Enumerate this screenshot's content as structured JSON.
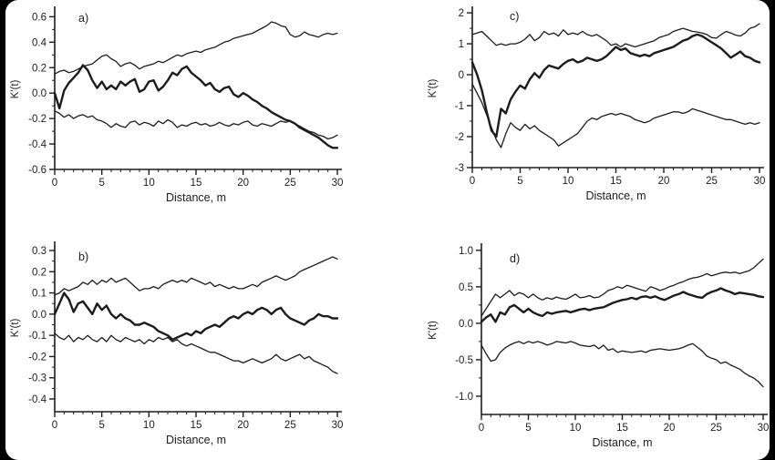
{
  "figure": {
    "background": "#ffffff",
    "page_background": "#000000",
    "line_color": "#1c1c1c",
    "text_color": "#1c1c1c"
  },
  "chart_data": [
    {
      "id": "a",
      "type": "line",
      "panel_label": "a)",
      "xlabel": "Distance, m",
      "ylabel": "K'(t)",
      "xlim": [
        0,
        30
      ],
      "ylim": [
        -0.6,
        0.66
      ],
      "xticks": [
        0,
        5,
        10,
        15,
        20,
        25,
        30
      ],
      "xtick_labels": [
        "0",
        "5",
        "10",
        "15",
        "20",
        "25",
        "30"
      ],
      "x_minor_step": 1,
      "yticks": [
        0.6,
        0.4,
        0.2,
        0,
        -0.2,
        -0.4,
        -0.6
      ],
      "ytick_labels": [
        "0.6",
        "0.4",
        "0.2",
        "0.0",
        "-0.2",
        "-0.4",
        "-0.6"
      ],
      "y_minor_step": 0.1,
      "grid": false,
      "legend": "none",
      "x_start": 0,
      "x_step": 0.5,
      "series": [
        {
          "name": "upper-envelope",
          "width": 1.3,
          "y": [
            0.15,
            0.17,
            0.18,
            0.16,
            0.17,
            0.19,
            0.21,
            0.22,
            0.23,
            0.26,
            0.29,
            0.3,
            0.27,
            0.25,
            0.21,
            0.23,
            0.24,
            0.22,
            0.19,
            0.21,
            0.22,
            0.23,
            0.25,
            0.24,
            0.26,
            0.28,
            0.3,
            0.29,
            0.31,
            0.32,
            0.33,
            0.32,
            0.34,
            0.35,
            0.36,
            0.38,
            0.4,
            0.41,
            0.43,
            0.44,
            0.45,
            0.46,
            0.47,
            0.49,
            0.51,
            0.53,
            0.56,
            0.55,
            0.53,
            0.52,
            0.46,
            0.44,
            0.45,
            0.48,
            0.46,
            0.45,
            0.44,
            0.46,
            0.47,
            0.46,
            0.47
          ]
        },
        {
          "name": "observed",
          "width": 2.4,
          "y": [
            0.0,
            -0.12,
            0.02,
            0.08,
            0.12,
            0.16,
            0.22,
            0.18,
            0.1,
            0.04,
            0.09,
            0.03,
            0.06,
            0.03,
            0.09,
            0.06,
            0.09,
            0.11,
            0.01,
            0.03,
            0.09,
            0.1,
            0.02,
            0.05,
            0.1,
            0.16,
            0.14,
            0.19,
            0.21,
            0.16,
            0.13,
            0.1,
            0.06,
            0.08,
            0.03,
            0.01,
            0.04,
            0.05,
            -0.01,
            -0.03,
            0.0,
            -0.02,
            -0.05,
            -0.07,
            -0.1,
            -0.12,
            -0.15,
            -0.17,
            -0.19,
            -0.21,
            -0.22,
            -0.24,
            -0.27,
            -0.29,
            -0.31,
            -0.33,
            -0.35,
            -0.38,
            -0.41,
            -0.43,
            -0.43
          ]
        },
        {
          "name": "lower-envelope",
          "width": 1.3,
          "y": [
            -0.14,
            -0.16,
            -0.19,
            -0.17,
            -0.2,
            -0.18,
            -0.17,
            -0.19,
            -0.18,
            -0.21,
            -0.22,
            -0.24,
            -0.27,
            -0.24,
            -0.26,
            -0.27,
            -0.23,
            -0.22,
            -0.25,
            -0.23,
            -0.24,
            -0.26,
            -0.22,
            -0.24,
            -0.21,
            -0.23,
            -0.27,
            -0.25,
            -0.26,
            -0.24,
            -0.23,
            -0.25,
            -0.24,
            -0.26,
            -0.25,
            -0.23,
            -0.25,
            -0.26,
            -0.24,
            -0.25,
            -0.23,
            -0.22,
            -0.25,
            -0.26,
            -0.24,
            -0.25,
            -0.26,
            -0.24,
            -0.22,
            -0.23,
            -0.22,
            -0.24,
            -0.26,
            -0.28,
            -0.3,
            -0.31,
            -0.33,
            -0.34,
            -0.36,
            -0.35,
            -0.33
          ]
        }
      ]
    },
    {
      "id": "c",
      "type": "line",
      "panel_label": "c)",
      "xlabel": "Distance, m",
      "ylabel": "K'(t)",
      "xlim": [
        0,
        30
      ],
      "ylim": [
        -3.0,
        2.12
      ],
      "xticks": [
        0,
        5,
        10,
        15,
        20,
        25,
        30
      ],
      "xtick_labels": [
        "0",
        "5",
        "10",
        "15",
        "20",
        "25",
        "30"
      ],
      "x_minor_step": 1,
      "yticks": [
        2,
        1,
        0,
        -1,
        -2,
        -3
      ],
      "ytick_labels": [
        "2",
        "1",
        "0",
        "-1",
        "-2",
        "-3"
      ],
      "y_minor_step": 0.5,
      "grid": false,
      "legend": "none",
      "x_start": 0,
      "x_step": 0.5,
      "series": [
        {
          "name": "upper-envelope",
          "width": 1.3,
          "y": [
            1.3,
            1.35,
            1.4,
            1.25,
            1.1,
            0.95,
            1.0,
            0.95,
            1.0,
            1.0,
            1.05,
            1.15,
            1.3,
            1.1,
            1.2,
            1.4,
            1.3,
            1.35,
            1.25,
            1.45,
            1.3,
            1.35,
            1.3,
            1.4,
            1.3,
            1.25,
            1.3,
            1.2,
            1.1,
            0.95,
            1.0,
            0.9,
            1.0,
            0.95,
            0.9,
            0.95,
            1.0,
            1.05,
            1.1,
            1.2,
            1.25,
            1.3,
            1.4,
            1.45,
            1.5,
            1.45,
            1.4,
            1.38,
            1.35,
            1.3,
            1.2,
            1.18,
            1.3,
            1.4,
            1.35,
            1.28,
            1.25,
            1.35,
            1.5,
            1.55,
            1.65
          ]
        },
        {
          "name": "observed",
          "width": 2.4,
          "y": [
            0.4,
            0.0,
            -0.5,
            -1.2,
            -1.8,
            -2.0,
            -1.1,
            -1.25,
            -0.8,
            -0.55,
            -0.35,
            -0.45,
            -0.15,
            0.05,
            -0.1,
            0.15,
            0.3,
            0.25,
            0.2,
            0.35,
            0.45,
            0.5,
            0.4,
            0.45,
            0.55,
            0.5,
            0.45,
            0.5,
            0.6,
            0.75,
            0.9,
            0.8,
            0.85,
            0.7,
            0.65,
            0.6,
            0.65,
            0.6,
            0.7,
            0.75,
            0.8,
            0.85,
            0.9,
            1.0,
            1.1,
            1.15,
            1.25,
            1.3,
            1.25,
            1.15,
            1.05,
            0.95,
            0.85,
            0.7,
            0.55,
            0.65,
            0.75,
            0.6,
            0.55,
            0.45,
            0.4
          ]
        },
        {
          "name": "lower-envelope",
          "width": 1.3,
          "y": [
            -0.3,
            -0.6,
            -0.9,
            -1.3,
            -1.7,
            -2.1,
            -2.35,
            -1.9,
            -1.55,
            -1.7,
            -1.8,
            -1.6,
            -1.75,
            -1.65,
            -1.8,
            -1.9,
            -2.0,
            -2.1,
            -2.3,
            -2.2,
            -2.1,
            -2.0,
            -1.9,
            -1.7,
            -1.5,
            -1.4,
            -1.45,
            -1.35,
            -1.3,
            -1.25,
            -1.3,
            -1.25,
            -1.3,
            -1.35,
            -1.45,
            -1.5,
            -1.55,
            -1.5,
            -1.4,
            -1.35,
            -1.3,
            -1.25,
            -1.2,
            -1.2,
            -1.25,
            -1.2,
            -1.1,
            -1.15,
            -1.2,
            -1.25,
            -1.3,
            -1.35,
            -1.4,
            -1.45,
            -1.45,
            -1.5,
            -1.55,
            -1.6,
            -1.55,
            -1.6,
            -1.55
          ]
        }
      ]
    },
    {
      "id": "b",
      "type": "line",
      "panel_label": "b)",
      "xlabel": "Distance, m",
      "ylabel": "K'(t)",
      "xlim": [
        0,
        30
      ],
      "ylim": [
        -0.46,
        0.33
      ],
      "xticks": [
        0,
        5,
        10,
        15,
        20,
        25,
        30
      ],
      "xtick_labels": [
        "0",
        "5",
        "10",
        "15",
        "20",
        "25",
        "30"
      ],
      "x_minor_step": 1,
      "yticks": [
        0.3,
        0.2,
        0.1,
        0,
        -0.1,
        -0.2,
        -0.3,
        -0.4
      ],
      "ytick_labels": [
        "0.3",
        "0.2",
        "0.1",
        "0.0",
        "-0.1",
        "-0.2",
        "-0.3",
        "-0.4"
      ],
      "y_minor_step": 0.05,
      "grid": false,
      "legend": "none",
      "x_start": 0,
      "x_step": 0.5,
      "series": [
        {
          "name": "upper-envelope",
          "width": 1.3,
          "y": [
            0.09,
            0.1,
            0.12,
            0.11,
            0.12,
            0.13,
            0.15,
            0.14,
            0.16,
            0.14,
            0.16,
            0.15,
            0.17,
            0.15,
            0.16,
            0.17,
            0.15,
            0.13,
            0.11,
            0.12,
            0.12,
            0.13,
            0.12,
            0.14,
            0.15,
            0.16,
            0.15,
            0.16,
            0.15,
            0.17,
            0.16,
            0.15,
            0.14,
            0.15,
            0.13,
            0.14,
            0.13,
            0.12,
            0.13,
            0.12,
            0.12,
            0.13,
            0.14,
            0.13,
            0.15,
            0.16,
            0.17,
            0.18,
            0.17,
            0.16,
            0.17,
            0.18,
            0.2,
            0.21,
            0.22,
            0.23,
            0.24,
            0.25,
            0.26,
            0.27,
            0.26
          ]
        },
        {
          "name": "observed",
          "width": 2.4,
          "y": [
            0.0,
            0.05,
            0.1,
            0.07,
            0.01,
            0.05,
            0.06,
            0.03,
            0.0,
            0.05,
            0.02,
            0.04,
            0.0,
            -0.02,
            0.0,
            -0.02,
            -0.03,
            -0.05,
            -0.05,
            -0.04,
            -0.05,
            -0.06,
            -0.08,
            -0.09,
            -0.1,
            -0.12,
            -0.11,
            -0.1,
            -0.09,
            -0.1,
            -0.08,
            -0.09,
            -0.07,
            -0.06,
            -0.05,
            -0.06,
            -0.04,
            -0.02,
            -0.01,
            -0.02,
            0.0,
            0.01,
            0.0,
            0.02,
            0.03,
            0.02,
            0.0,
            0.02,
            0.03,
            0.0,
            -0.02,
            -0.03,
            -0.04,
            -0.05,
            -0.03,
            -0.02,
            0.0,
            -0.01,
            -0.01,
            -0.02,
            -0.02
          ]
        },
        {
          "name": "lower-envelope",
          "width": 1.3,
          "y": [
            -0.09,
            -0.11,
            -0.12,
            -0.1,
            -0.13,
            -0.11,
            -0.12,
            -0.1,
            -0.12,
            -0.13,
            -0.11,
            -0.13,
            -0.1,
            -0.12,
            -0.13,
            -0.11,
            -0.12,
            -0.13,
            -0.12,
            -0.14,
            -0.12,
            -0.13,
            -0.11,
            -0.12,
            -0.11,
            -0.13,
            -0.12,
            -0.14,
            -0.15,
            -0.14,
            -0.15,
            -0.16,
            -0.17,
            -0.18,
            -0.18,
            -0.19,
            -0.2,
            -0.21,
            -0.22,
            -0.22,
            -0.23,
            -0.22,
            -0.21,
            -0.22,
            -0.23,
            -0.22,
            -0.21,
            -0.19,
            -0.21,
            -0.22,
            -0.21,
            -0.2,
            -0.19,
            -0.21,
            -0.2,
            -0.22,
            -0.23,
            -0.24,
            -0.25,
            -0.27,
            -0.28
          ]
        }
      ]
    },
    {
      "id": "d",
      "type": "line",
      "panel_label": "d)",
      "xlabel": "Distance, m",
      "ylabel": "K'(t)",
      "xlim": [
        0,
        30
      ],
      "ylim": [
        -1.25,
        1.06
      ],
      "xticks": [
        0,
        5,
        10,
        15,
        20,
        25,
        30
      ],
      "xtick_labels": [
        "0",
        "5",
        "10",
        "15",
        "20",
        "25",
        "30"
      ],
      "x_minor_step": 1,
      "yticks": [
        1.0,
        0.5,
        0.0,
        -0.5,
        -1.0
      ],
      "ytick_labels": [
        "1.0",
        "0.5",
        "0.0",
        "-0.5",
        "-1.0"
      ],
      "y_minor_step": 0.25,
      "grid": false,
      "legend": "none",
      "x_start": 0,
      "x_step": 0.5,
      "series": [
        {
          "name": "upper-envelope",
          "width": 1.3,
          "y": [
            0.1,
            0.2,
            0.3,
            0.4,
            0.35,
            0.4,
            0.45,
            0.38,
            0.42,
            0.4,
            0.35,
            0.4,
            0.35,
            0.32,
            0.35,
            0.33,
            0.36,
            0.34,
            0.33,
            0.36,
            0.4,
            0.35,
            0.36,
            0.38,
            0.35,
            0.36,
            0.4,
            0.45,
            0.47,
            0.5,
            0.48,
            0.52,
            0.5,
            0.48,
            0.46,
            0.44,
            0.5,
            0.48,
            0.45,
            0.47,
            0.5,
            0.52,
            0.55,
            0.57,
            0.6,
            0.62,
            0.63,
            0.65,
            0.68,
            0.65,
            0.67,
            0.69,
            0.7,
            0.69,
            0.7,
            0.68,
            0.7,
            0.72,
            0.76,
            0.82,
            0.88
          ]
        },
        {
          "name": "observed",
          "width": 2.4,
          "y": [
            0.02,
            0.08,
            0.12,
            0.02,
            0.15,
            0.12,
            0.22,
            0.25,
            0.2,
            0.15,
            0.2,
            0.15,
            0.12,
            0.1,
            0.15,
            0.13,
            0.15,
            0.16,
            0.17,
            0.15,
            0.17,
            0.19,
            0.2,
            0.18,
            0.2,
            0.21,
            0.22,
            0.25,
            0.28,
            0.3,
            0.32,
            0.33,
            0.35,
            0.33,
            0.36,
            0.37,
            0.35,
            0.37,
            0.34,
            0.32,
            0.35,
            0.38,
            0.4,
            0.43,
            0.4,
            0.38,
            0.36,
            0.35,
            0.4,
            0.43,
            0.45,
            0.48,
            0.45,
            0.43,
            0.4,
            0.42,
            0.41,
            0.4,
            0.39,
            0.37,
            0.36
          ]
        },
        {
          "name": "lower-envelope",
          "width": 1.3,
          "y": [
            -0.3,
            -0.42,
            -0.52,
            -0.5,
            -0.4,
            -0.34,
            -0.3,
            -0.27,
            -0.25,
            -0.28,
            -0.25,
            -0.27,
            -0.25,
            -0.27,
            -0.3,
            -0.28,
            -0.25,
            -0.26,
            -0.27,
            -0.25,
            -0.27,
            -0.3,
            -0.31,
            -0.32,
            -0.3,
            -0.35,
            -0.3,
            -0.37,
            -0.35,
            -0.4,
            -0.38,
            -0.39,
            -0.4,
            -0.39,
            -0.38,
            -0.4,
            -0.37,
            -0.36,
            -0.35,
            -0.36,
            -0.37,
            -0.36,
            -0.35,
            -0.33,
            -0.3,
            -0.28,
            -0.33,
            -0.38,
            -0.45,
            -0.48,
            -0.5,
            -0.55,
            -0.53,
            -0.57,
            -0.6,
            -0.63,
            -0.68,
            -0.72,
            -0.75,
            -0.8,
            -0.87
          ]
        }
      ]
    }
  ]
}
